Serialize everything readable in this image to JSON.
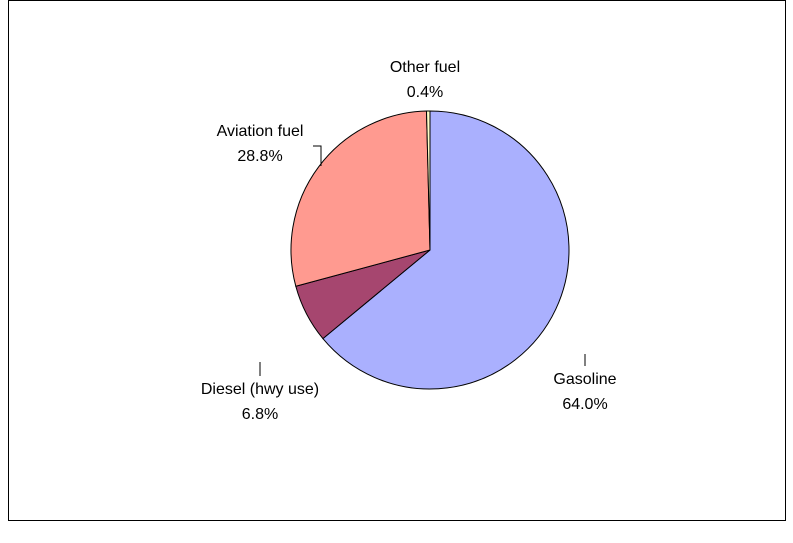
{
  "chart_data": {
    "type": "pie",
    "categories": [
      "Gasoline",
      "Diesel (hwy use)",
      "Aviation fuel",
      "Other fuel"
    ],
    "values": [
      64.0,
      6.8,
      28.8,
      0.4
    ],
    "value_labels": [
      "64.0%",
      "6.8%",
      "28.8%",
      "0.4%"
    ],
    "colors": [
      "#aab0fe",
      "#a6466f",
      "#ff9a90",
      "#ffffc8"
    ]
  }
}
